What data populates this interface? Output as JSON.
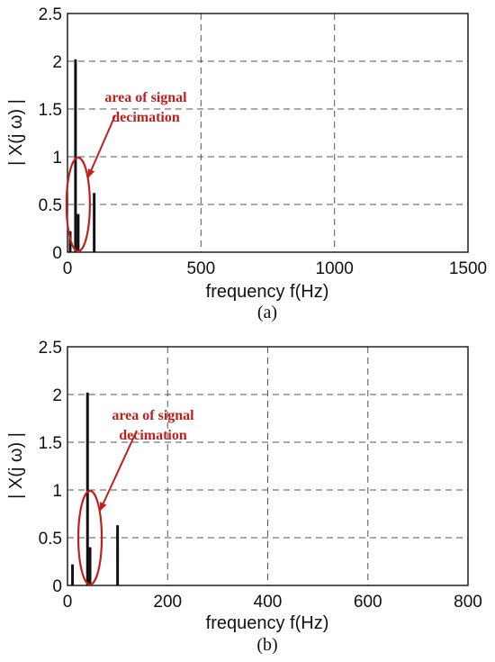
{
  "chart_data": [
    {
      "type": "bar",
      "panel_label": "(a)",
      "xlabel": "frequency f(Hz)",
      "ylabel": "| X(j ω) |",
      "xlim": [
        0,
        1500
      ],
      "ylim": [
        0,
        2.5
      ],
      "xticks": [
        "0",
        "500",
        "1000",
        "1500"
      ],
      "yticks": [
        "0",
        "0.5",
        "1",
        "1.5",
        "2",
        "2.5"
      ],
      "grid": true,
      "x": [
        10,
        30,
        40,
        100
      ],
      "values": [
        0.22,
        2.02,
        0.4,
        0.62
      ],
      "annotation": {
        "line1": "area of signal",
        "line2": "decimation",
        "target_x": 40,
        "target_y": 0.5
      }
    },
    {
      "type": "bar",
      "panel_label": "(b)",
      "xlabel": "frequency f(Hz)",
      "ylabel": "| X(j ω) |",
      "xlim": [
        0,
        800
      ],
      "ylim": [
        0,
        2.5
      ],
      "xticks": [
        "0",
        "200",
        "400",
        "600",
        "800"
      ],
      "yticks": [
        "0",
        "0.5",
        "1",
        "1.5",
        "2",
        "2.5"
      ],
      "grid": true,
      "x": [
        10,
        40,
        45,
        100
      ],
      "values": [
        0.22,
        2.02,
        0.4,
        0.63
      ],
      "annotation": {
        "line1": "area of signal",
        "line2": "decimation",
        "target_x": 45,
        "target_y": 0.5
      }
    }
  ]
}
